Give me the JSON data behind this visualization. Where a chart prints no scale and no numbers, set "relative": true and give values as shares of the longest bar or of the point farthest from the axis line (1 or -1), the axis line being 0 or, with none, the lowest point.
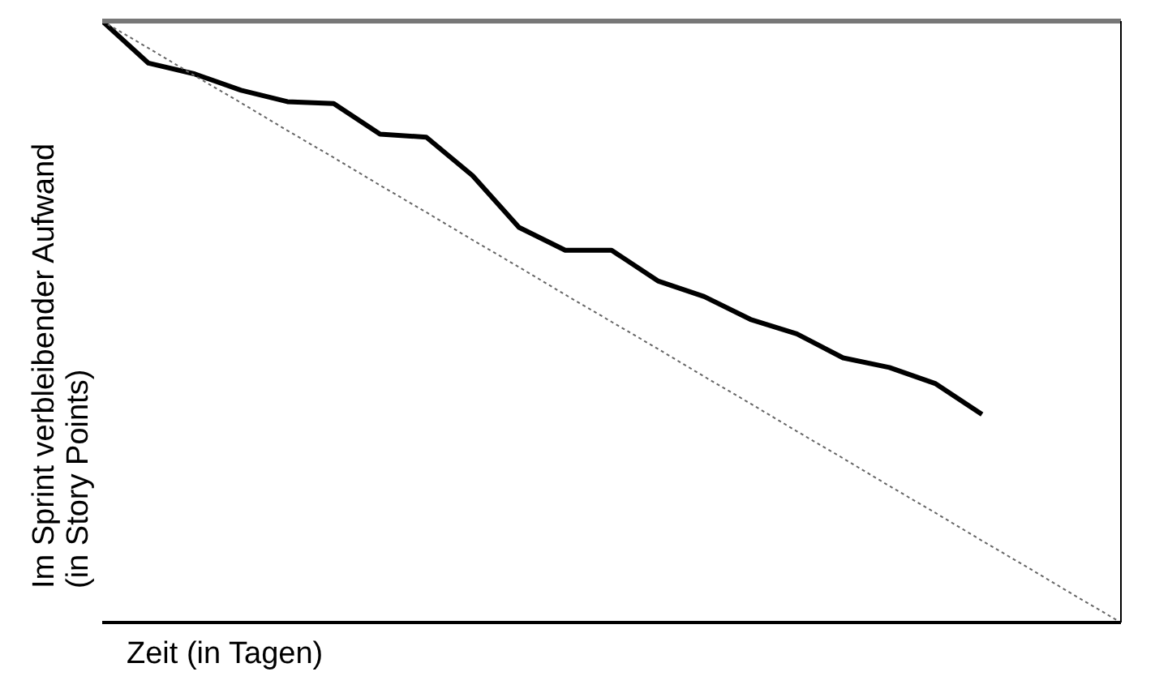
{
  "chart_data": {
    "type": "line",
    "xlabel": "Zeit (in Tagen)",
    "ylabel": "Im Sprint verbleibender Aufwand (in Story Points)",
    "relative": true,
    "marker": "none",
    "categories": [
      null,
      null,
      null,
      null,
      null,
      null,
      null,
      null,
      null,
      null,
      null,
      null,
      null,
      null,
      null,
      null,
      null,
      null,
      null,
      null,
      null,
      null,
      null
    ],
    "series": [
      {
        "color": "#000000",
        "line_style": "solid",
        "values": [
          1,
          0.93,
          0.912,
          0.885,
          0.866,
          0.863,
          0.812,
          0.807,
          0.743,
          0.657,
          0.619,
          0.619,
          0.568,
          0.542,
          0.504,
          0.48,
          0.44,
          0.424,
          0.397,
          0.346,
          null,
          null,
          null
        ]
      },
      {
        "color": "#666666",
        "line_style": "dotted",
        "values": [
          1,
          0.955,
          0.909,
          0.864,
          0.818,
          0.773,
          0.727,
          0.682,
          0.636,
          0.591,
          0.545,
          0.5,
          0.455,
          0.409,
          0.364,
          0.318,
          0.273,
          0.227,
          0.182,
          0.136,
          0.091,
          0.045,
          0
        ]
      }
    ]
  }
}
